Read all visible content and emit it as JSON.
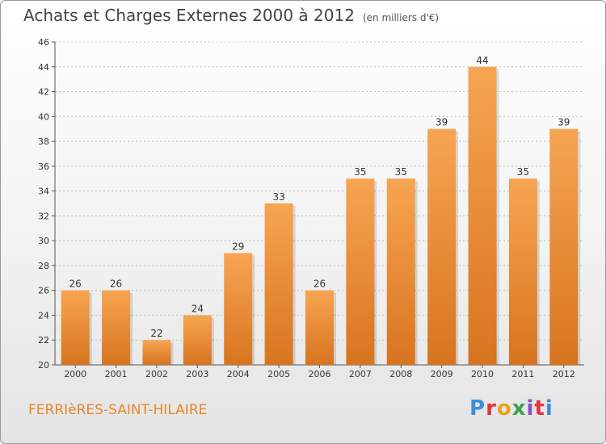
{
  "header": {
    "title": "Achats et Charges Externes 2000 à 2012",
    "unit": "(en milliers d'€)"
  },
  "footer": {
    "commune": "FERRIèRES-SAINT-HILAIRE",
    "logo_text": "Proxiti",
    "logo_colors": [
      "#3a8fd9",
      "#e8323c",
      "#f0a020",
      "#3aa04a",
      "#8a4fc0",
      "#e8323c",
      "#3a8fd9"
    ]
  },
  "colors": {
    "bar_top": "#f7a552",
    "bar_bottom": "#d8741f",
    "grid": "#bdbdbd"
  },
  "chart_data": {
    "type": "bar",
    "title": "Achats et Charges Externes 2000 à 2012",
    "xlabel": "",
    "ylabel": "",
    "categories": [
      "2000",
      "2001",
      "2002",
      "2003",
      "2004",
      "2005",
      "2006",
      "2007",
      "2008",
      "2009",
      "2010",
      "2011",
      "2012"
    ],
    "values": [
      26,
      26,
      22,
      24,
      29,
      33,
      26,
      35,
      35,
      39,
      44,
      35,
      39
    ],
    "ylim": [
      20,
      46
    ],
    "yticks": [
      20,
      22,
      24,
      26,
      28,
      30,
      32,
      34,
      36,
      38,
      40,
      42,
      44,
      46
    ],
    "grid": true,
    "data_labels": true
  }
}
